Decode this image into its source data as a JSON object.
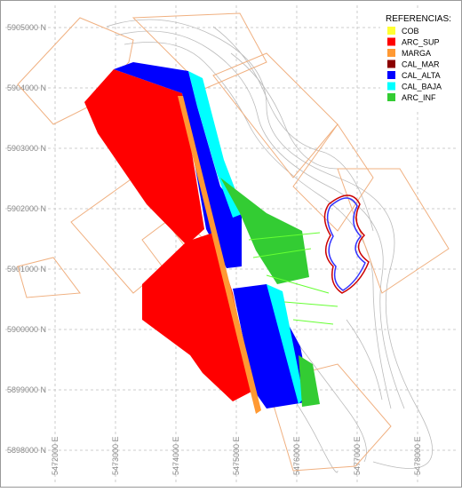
{
  "legend": {
    "title": "REFERENCIAS:",
    "items": [
      {
        "label": "COB",
        "color": "#ffff33"
      },
      {
        "label": "ARC_SUP",
        "color": "#ff0000"
      },
      {
        "label": "MARGA",
        "color": "#ff9933"
      },
      {
        "label": "CAL_MAR",
        "color": "#8b0000"
      },
      {
        "label": "CAL_ALTA",
        "color": "#0000ff"
      },
      {
        "label": "CAL_BAJA",
        "color": "#00ffff"
      },
      {
        "label": "ARC_INF",
        "color": "#33cc33"
      }
    ]
  },
  "grid": {
    "y_labels": [
      "5905000 N",
      "5904000 N",
      "5903000 N",
      "5902000 N",
      "5901000 N",
      "5900000 N",
      "5899000 N",
      "5898000 N"
    ],
    "x_labels": [
      "5472000 E",
      "5473000 E",
      "5474000 E",
      "5475000 E",
      "5476000 E",
      "5477000 E",
      "5478000 E"
    ]
  }
}
